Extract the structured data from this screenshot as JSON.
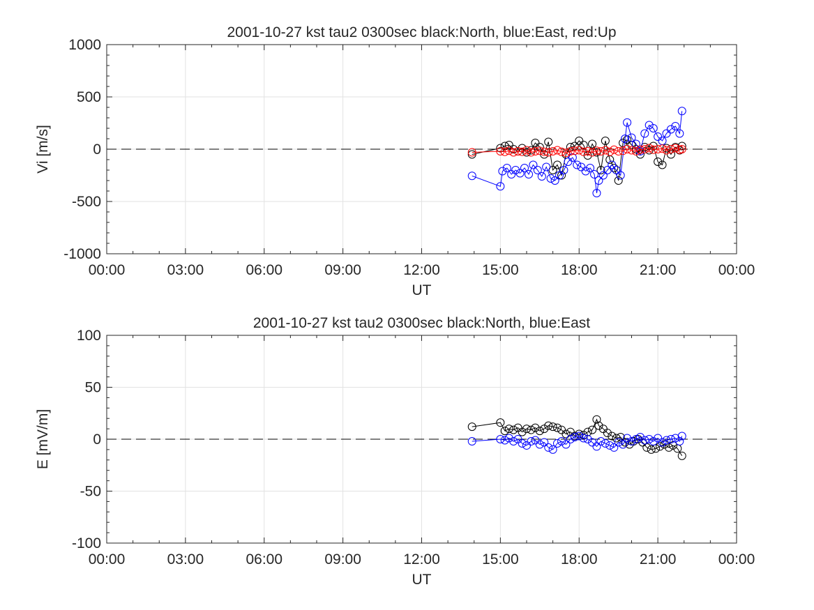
{
  "chart_data": [
    {
      "type": "scatter",
      "title": "2001-10-27 kst tau2 0300sec black:North, blue:East, red:Up",
      "xlabel": "UT",
      "ylabel": "Vi [m/s]",
      "xlim": [
        0,
        24
      ],
      "ylim": [
        -1000,
        1000
      ],
      "xticks": [
        "00:00",
        "03:00",
        "06:00",
        "09:00",
        "12:00",
        "15:00",
        "18:00",
        "21:00",
        "00:00"
      ],
      "yticks": [
        "1000",
        "500",
        "0",
        "-500",
        "-1000"
      ],
      "grid": true,
      "zero_line": "dashed",
      "series": [
        {
          "name": "North",
          "color": "#000000",
          "x": [
            13.92,
            15.0,
            15.17,
            15.33,
            15.5,
            15.67,
            15.83,
            16.0,
            16.17,
            16.33,
            16.5,
            16.67,
            16.83,
            17.0,
            17.17,
            17.33,
            17.5,
            17.67,
            17.83,
            18.0,
            18.17,
            18.33,
            18.5,
            18.67,
            18.83,
            19.0,
            19.17,
            19.33,
            19.5,
            19.67,
            19.83,
            20.0,
            20.17,
            20.33,
            20.5,
            20.67,
            20.83,
            21.0,
            21.17,
            21.33,
            21.5,
            21.67,
            21.83,
            21.92
          ],
          "y": [
            -50,
            10,
            30,
            40,
            0,
            -20,
            10,
            -30,
            -10,
            60,
            20,
            -50,
            70,
            -200,
            -150,
            -250,
            -50,
            20,
            30,
            80,
            40,
            -60,
            50,
            -30,
            -200,
            80,
            -100,
            -180,
            -300,
            60,
            90,
            40,
            0,
            -50,
            20,
            -10,
            30,
            -120,
            -150,
            10,
            -50,
            20,
            -10,
            30
          ]
        },
        {
          "name": "East",
          "color": "#0000ff",
          "x": [
            13.92,
            15.0,
            15.08,
            15.25,
            15.42,
            15.58,
            15.75,
            15.92,
            16.08,
            16.25,
            16.42,
            16.58,
            16.75,
            16.92,
            17.08,
            17.25,
            17.42,
            17.58,
            17.75,
            17.92,
            18.08,
            18.25,
            18.42,
            18.58,
            18.67,
            18.75,
            18.92,
            19.08,
            19.25,
            19.42,
            19.58,
            19.75,
            19.83,
            20.0,
            20.17,
            20.33,
            20.5,
            20.67,
            20.83,
            21.0,
            21.17,
            21.33,
            21.5,
            21.67,
            21.83,
            21.92
          ],
          "y": [
            -255,
            -355,
            -210,
            -180,
            -240,
            -200,
            -230,
            -180,
            -240,
            -150,
            -200,
            -260,
            -170,
            -280,
            -300,
            -250,
            -200,
            -120,
            -80,
            -150,
            -170,
            -210,
            -180,
            -240,
            -420,
            -300,
            -250,
            -200,
            -150,
            -200,
            -250,
            100,
            255,
            110,
            50,
            -20,
            150,
            230,
            200,
            120,
            80,
            150,
            190,
            220,
            150,
            365
          ]
        },
        {
          "name": "Up",
          "color": "#ff0000",
          "x": [
            13.92,
            15.0,
            15.17,
            15.33,
            15.5,
            15.67,
            15.83,
            16.0,
            16.17,
            16.33,
            16.5,
            16.67,
            16.83,
            17.0,
            17.17,
            17.33,
            17.5,
            17.67,
            17.83,
            18.0,
            18.17,
            18.33,
            18.5,
            18.67,
            18.83,
            19.0,
            19.17,
            19.33,
            19.5,
            19.67,
            19.83,
            20.0,
            20.17,
            20.33,
            20.5,
            20.67,
            20.83,
            21.0,
            21.17,
            21.33,
            21.5,
            21.67,
            21.83,
            21.92
          ],
          "y": [
            -30,
            -20,
            -25,
            -15,
            -30,
            -20,
            -25,
            -10,
            -30,
            -20,
            -15,
            -25,
            -30,
            -20,
            -10,
            -25,
            -35,
            -20,
            -15,
            -10,
            -25,
            -20,
            -30,
            -15,
            -20,
            -10,
            -25,
            -5,
            -20,
            -15,
            0,
            -10,
            -20,
            -5,
            0,
            10,
            -5,
            0,
            5,
            -10,
            0,
            10,
            -5,
            0
          ]
        }
      ]
    },
    {
      "type": "scatter",
      "title": "2001-10-27 kst tau2 0300sec black:North, blue:East",
      "xlabel": "UT",
      "ylabel": "E [mV/m]",
      "xlim": [
        0,
        24
      ],
      "ylim": [
        -100,
        100
      ],
      "xticks": [
        "00:00",
        "03:00",
        "06:00",
        "09:00",
        "12:00",
        "15:00",
        "18:00",
        "21:00",
        "00:00"
      ],
      "yticks": [
        "100",
        "50",
        "0",
        "-50",
        "-100"
      ],
      "grid": true,
      "zero_line": "dashed",
      "series": [
        {
          "name": "North",
          "color": "#000000",
          "x": [
            13.92,
            15.0,
            15.17,
            15.33,
            15.5,
            15.67,
            15.83,
            16.0,
            16.17,
            16.33,
            16.5,
            16.67,
            16.83,
            17.0,
            17.17,
            17.33,
            17.5,
            17.67,
            17.83,
            18.0,
            18.17,
            18.33,
            18.5,
            18.67,
            18.75,
            18.92,
            19.08,
            19.25,
            19.42,
            19.58,
            19.75,
            19.92,
            20.08,
            20.25,
            20.42,
            20.58,
            20.75,
            20.92,
            21.08,
            21.25,
            21.42,
            21.58,
            21.75,
            21.92
          ],
          "y": [
            12,
            16,
            8,
            10,
            9,
            11,
            7,
            10,
            9,
            11,
            8,
            10,
            13,
            12,
            11,
            9,
            5,
            7,
            3,
            5,
            4,
            7,
            9,
            19,
            13,
            10,
            6,
            3,
            1,
            2,
            -3,
            -5,
            -2,
            0,
            -3,
            -8,
            -10,
            -9,
            -7,
            -5,
            -8,
            -6,
            -9,
            -16
          ]
        },
        {
          "name": "East",
          "color": "#0000ff",
          "x": [
            13.92,
            15.0,
            15.17,
            15.33,
            15.5,
            15.67,
            15.83,
            16.0,
            16.17,
            16.33,
            16.5,
            16.67,
            16.83,
            17.0,
            17.17,
            17.33,
            17.5,
            17.67,
            17.83,
            18.0,
            18.17,
            18.33,
            18.5,
            18.67,
            18.83,
            19.0,
            19.17,
            19.33,
            19.5,
            19.67,
            19.83,
            20.0,
            20.17,
            20.33,
            20.5,
            20.67,
            20.83,
            21.0,
            21.17,
            21.33,
            21.5,
            21.67,
            21.83,
            21.92
          ],
          "y": [
            -2,
            0,
            -1,
            1,
            -2,
            0,
            -4,
            -6,
            -2,
            -1,
            -5,
            -3,
            -8,
            -10,
            -4,
            -2,
            -5,
            0,
            2,
            3,
            1,
            0,
            -3,
            -7,
            -2,
            -4,
            -6,
            -8,
            -3,
            -5,
            1,
            -2,
            0,
            2,
            -1,
            0,
            -2,
            1,
            -3,
            -1,
            0,
            1,
            -2,
            3
          ]
        }
      ]
    }
  ]
}
